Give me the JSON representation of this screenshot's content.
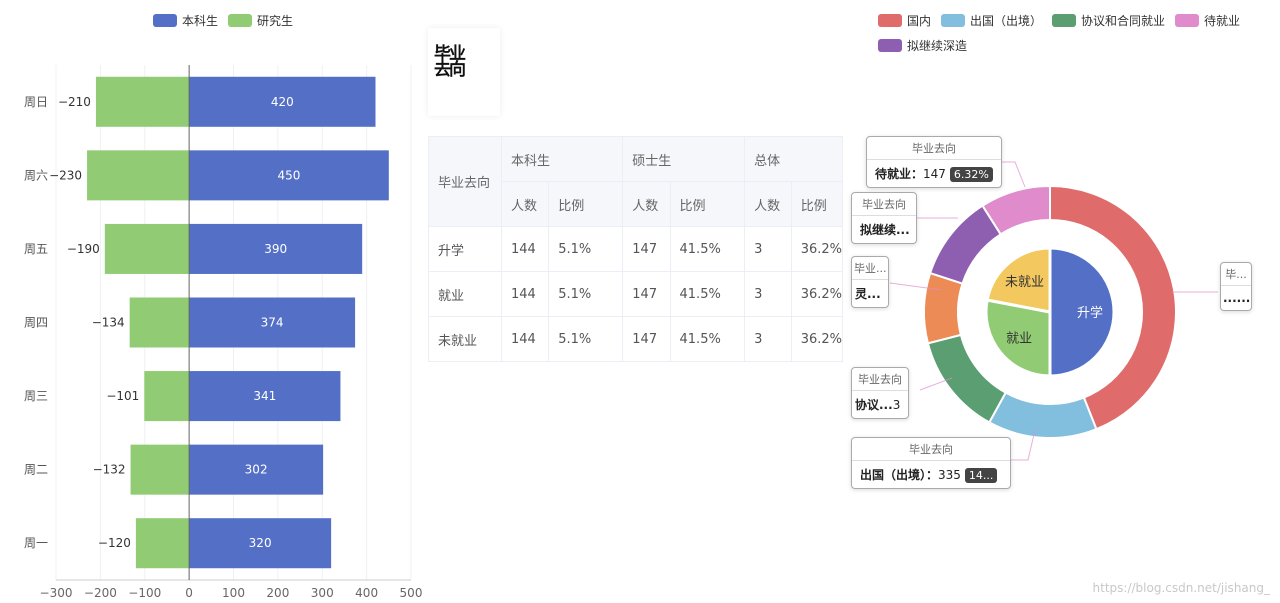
{
  "legend_left": [
    {
      "name": "本科生",
      "color": "#5470c6"
    },
    {
      "name": "研究生",
      "color": "#91cc75"
    }
  ],
  "legend_right": [
    {
      "name": "国内",
      "color": "#e06b6b"
    },
    {
      "name": "出国（出境）",
      "color": "#82bfde"
    },
    {
      "name": "协议和合同就业",
      "color": "#5a9e72"
    },
    {
      "name": "待就业",
      "color": "#e08ccc"
    },
    {
      "name": "拟继续深造",
      "color": "#8e5fb1"
    }
  ],
  "page_title": "毕业去向",
  "table": {
    "col1": "毕业去向",
    "groups": [
      "本科生",
      "硕士生",
      "总体"
    ],
    "sub": [
      "人数",
      "比例",
      "人数",
      "比例",
      "人数",
      "比例"
    ],
    "rows": [
      [
        "升学",
        "144",
        "5.1%",
        "147",
        "41.5%",
        "3",
        "36.2%"
      ],
      [
        "就业",
        "144",
        "5.1%",
        "147",
        "41.5%",
        "3",
        "36.2%"
      ],
      [
        "未就业",
        "144",
        "5.1%",
        "147",
        "41.5%",
        "3",
        "36.2%"
      ]
    ]
  },
  "tooltips": [
    {
      "title": "毕业去向",
      "label": "待就业：",
      "value": "147",
      "pct": "6.32%"
    },
    {
      "title": "毕业去向",
      "label": "拟继续...",
      "value": "",
      "pct": ""
    },
    {
      "title": "毕业...",
      "label": "灵...",
      "value": "",
      "pct": ""
    },
    {
      "title": "毕业去向",
      "label": "协议...",
      "value": "3",
      "pct": ""
    },
    {
      "title": "毕业去向",
      "label": "出国（出境）：",
      "value": "335",
      "pct": "14..."
    },
    {
      "title": "毕...",
      "label": "......",
      "value": "",
      "pct": ""
    }
  ],
  "watermark": "https://blog.csdn.net/jishang_",
  "chart_data": [
    {
      "type": "bar",
      "orientation": "horizontal",
      "categories": [
        "周一",
        "周二",
        "周三",
        "周四",
        "周五",
        "周六",
        "周日"
      ],
      "series": [
        {
          "name": "本科生",
          "color": "#5470c6",
          "values": [
            320,
            302,
            341,
            374,
            390,
            450,
            420
          ]
        },
        {
          "name": "研究生",
          "color": "#91cc75",
          "values": [
            -120,
            -132,
            -101,
            -134,
            -190,
            -230,
            -210
          ]
        }
      ],
      "xlim": [
        -300,
        500
      ],
      "xticks": [
        -300,
        -200,
        -100,
        0,
        100,
        200,
        300,
        400,
        500
      ],
      "grid": true,
      "legend": "top-left"
    },
    {
      "type": "pie",
      "inner": [
        {
          "name": "升学",
          "value": 50,
          "color": "#5470c6"
        },
        {
          "name": "就业",
          "value": 28,
          "color": "#91cc75"
        },
        {
          "name": "未就业",
          "value": 22,
          "color": "#f3c85f"
        }
      ],
      "outer": [
        {
          "name": "国内",
          "value": 44,
          "color": "#e06b6b"
        },
        {
          "name": "出国（出境）",
          "value": 14,
          "color": "#82bfde"
        },
        {
          "name": "协议和合同就业",
          "value": 13,
          "color": "#5a9e72"
        },
        {
          "name": "灵活就业",
          "value": 9,
          "color": "#ed8b56"
        },
        {
          "name": "拟继续深造",
          "value": 11,
          "color": "#8e5fb1"
        },
        {
          "name": "待就业",
          "value": 9,
          "color": "#e08ccc"
        }
      ],
      "legend": "top-right"
    }
  ]
}
